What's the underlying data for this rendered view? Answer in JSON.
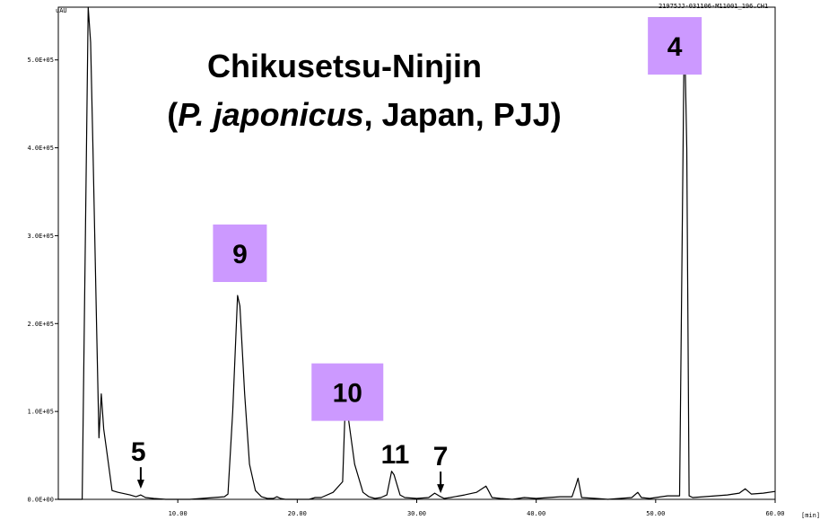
{
  "chart_data": {
    "type": "line",
    "title_line1": "Chikusetsu-Ninjin",
    "title_line2_open": "(",
    "title_line2_italic_a": "P.",
    "title_line2_italic_b": "japonicus",
    "title_line2_rest": ", Japan, PJJ)",
    "file_label": "21975JJ-031106-M11001_196.CH1",
    "ylabel": "uAU",
    "xlabel": "[min]",
    "xlim": [
      0,
      60
    ],
    "ylim": [
      0,
      560000
    ],
    "x_ticks": [
      {
        "value": 10,
        "label": "10.00"
      },
      {
        "value": 20,
        "label": "20.00"
      },
      {
        "value": 30,
        "label": "30.00"
      },
      {
        "value": 40,
        "label": "40.00"
      },
      {
        "value": 50,
        "label": "50.00"
      },
      {
        "value": 60,
        "label": "60.00"
      }
    ],
    "y_ticks": [
      {
        "value": 0,
        "label": "0.0E+00"
      },
      {
        "value": 100000,
        "label": "1.0E+05"
      },
      {
        "value": 200000,
        "label": "2.0E+05"
      },
      {
        "value": 300000,
        "label": "3.0E+05"
      },
      {
        "value": 400000,
        "label": "4.0E+05"
      },
      {
        "value": 500000,
        "label": "5.0E+05"
      }
    ],
    "series": [
      {
        "color": "#000000",
        "x": [
          0.0,
          1.0,
          2.0,
          2.5,
          2.7,
          2.9,
          3.2,
          3.4,
          3.6,
          3.8,
          4.0,
          4.5,
          5.0,
          6.0,
          6.5,
          6.9,
          7.3,
          8.0,
          9.0,
          10.0,
          11.0,
          12.0,
          13.0,
          13.9,
          14.2,
          14.6,
          15.0,
          15.2,
          15.6,
          16.0,
          16.5,
          17.0,
          17.5,
          18.0,
          18.3,
          18.6,
          19.0,
          20.0,
          21.0,
          21.5,
          22.0,
          23.0,
          23.8,
          24.0,
          24.3,
          24.8,
          25.5,
          26.0,
          26.5,
          27.0,
          27.5,
          27.9,
          28.1,
          28.6,
          29.0,
          30.0,
          31.0,
          31.5,
          32.0,
          32.3,
          32.8,
          34.0,
          35.0,
          35.8,
          36.0,
          36.3,
          37.0,
          38.0,
          39.0,
          40.0,
          41.0,
          42.0,
          43.0,
          43.3,
          43.5,
          43.8,
          45.0,
          46.0,
          47.0,
          48.0,
          48.5,
          48.8,
          49.5,
          50.0,
          51.0,
          52.0,
          52.4,
          52.6,
          52.8,
          53.1,
          54.0,
          55.0,
          56.0,
          57.0,
          57.5,
          58.0,
          59.0,
          60.0
        ],
        "y": [
          0,
          0,
          0,
          560000,
          520000,
          400000,
          200000,
          70000,
          120000,
          80000,
          60000,
          10000,
          8000,
          5000,
          3000,
          5000,
          2000,
          1000,
          0,
          0,
          0,
          1000,
          2000,
          3000,
          6000,
          100000,
          232000,
          220000,
          120000,
          40000,
          10000,
          3000,
          1000,
          1000,
          3000,
          1000,
          0,
          0,
          0,
          2000,
          2000,
          8000,
          20000,
          100000,
          90000,
          40000,
          8000,
          3000,
          1000,
          2000,
          5000,
          32000,
          28000,
          5000,
          2000,
          1000,
          2000,
          7000,
          3000,
          1000,
          2000,
          5000,
          8000,
          15000,
          10000,
          2000,
          1000,
          0,
          2000,
          1000,
          2000,
          3000,
          3000,
          15000,
          24000,
          2000,
          1000,
          0,
          1000,
          2000,
          8000,
          2000,
          1000,
          2000,
          4000,
          4000,
          545000,
          400000,
          4000,
          2000,
          3000,
          4000,
          5000,
          7000,
          12000,
          6000,
          7000,
          9000
        ]
      }
    ],
    "annotations": [
      {
        "text": "4",
        "x": 51.6,
        "y": 516000,
        "boxed": true
      },
      {
        "text": "9",
        "x": 15.2,
        "y": 280000,
        "boxed": true
      },
      {
        "text": "10",
        "x": 24.2,
        "y": 122000,
        "boxed": true
      },
      {
        "text": "11",
        "x": 28.2,
        "y": 52000,
        "boxed": false
      },
      {
        "text": "5",
        "x": 6.7,
        "y": 55000,
        "boxed": false,
        "arrow_to": 6.9
      },
      {
        "text": "7",
        "x": 32.0,
        "y": 50000,
        "boxed": false,
        "arrow_to": 32.0
      }
    ],
    "label_box_color": "#cc99ff",
    "grid": false,
    "legend": "none"
  }
}
